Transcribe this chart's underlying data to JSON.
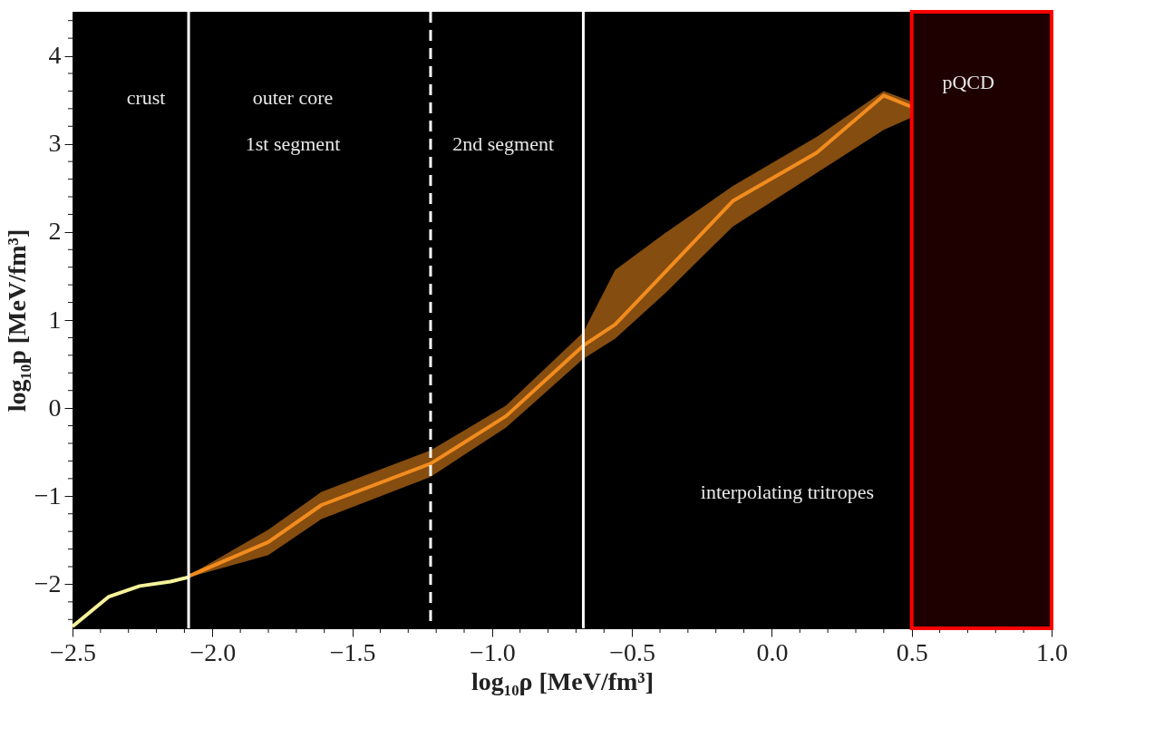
{
  "chart_data": {
    "type": "line",
    "xlabel": "log₁₀ρ [MeV/fm³]",
    "ylabel": "log₁₀p [MeV/fm³]",
    "xlim": [
      -2.5,
      1.0
    ],
    "ylim": [
      -2.5,
      4.5
    ],
    "xticks": [
      {
        "value": -2.5,
        "label": "−2.5"
      },
      {
        "value": -2.4,
        "label": null
      },
      {
        "value": -2.3,
        "label": null
      },
      {
        "value": -2.2,
        "label": null
      },
      {
        "value": -2.1,
        "label": null
      },
      {
        "value": -2.0,
        "label": "−2.0"
      },
      {
        "value": -1.9,
        "label": null
      },
      {
        "value": -1.8,
        "label": null
      },
      {
        "value": -1.7,
        "label": null
      },
      {
        "value": -1.6,
        "label": null
      },
      {
        "value": -1.5,
        "label": "−1.5"
      },
      {
        "value": -1.4,
        "label": null
      },
      {
        "value": -1.3,
        "label": null
      },
      {
        "value": -1.2,
        "label": null
      },
      {
        "value": -1.1,
        "label": null
      },
      {
        "value": -1.0,
        "label": "−1.0"
      },
      {
        "value": -0.9,
        "label": null
      },
      {
        "value": -0.8,
        "label": null
      },
      {
        "value": -0.7,
        "label": null
      },
      {
        "value": -0.6,
        "label": null
      },
      {
        "value": -0.5,
        "label": "−0.5"
      },
      {
        "value": -0.4,
        "label": null
      },
      {
        "value": -0.3,
        "label": null
      },
      {
        "value": -0.2,
        "label": null
      },
      {
        "value": -0.1,
        "label": null
      },
      {
        "value": 0.0,
        "label": "0.0"
      },
      {
        "value": 0.1,
        "label": null
      },
      {
        "value": 0.2,
        "label": null
      },
      {
        "value": 0.3,
        "label": null
      },
      {
        "value": 0.4,
        "label": null
      },
      {
        "value": 0.5,
        "label": "0.5"
      },
      {
        "value": 0.6,
        "label": null
      },
      {
        "value": 0.7,
        "label": null
      },
      {
        "value": 0.8,
        "label": null
      },
      {
        "value": 0.9,
        "label": null
      },
      {
        "value": 1.0,
        "label": "1.0"
      }
    ],
    "yticks": [
      {
        "value": -2.4,
        "label": null
      },
      {
        "value": -2.2,
        "label": null
      },
      {
        "value": -2,
        "label": "−2"
      },
      {
        "value": -1.8,
        "label": null
      },
      {
        "value": -1.6,
        "label": null
      },
      {
        "value": -1.4,
        "label": null
      },
      {
        "value": -1.2,
        "label": null
      },
      {
        "value": -1,
        "label": "−1"
      },
      {
        "value": -0.8,
        "label": null
      },
      {
        "value": -0.6,
        "label": null
      },
      {
        "value": -0.4,
        "label": null
      },
      {
        "value": -0.2,
        "label": null
      },
      0,
      {
        "value": 0.2,
        "label": null
      },
      {
        "value": 0.4,
        "label": null
      },
      {
        "value": 0.6,
        "label": null
      },
      {
        "value": 0.8,
        "label": null
      },
      1,
      {
        "value": 1.2,
        "label": null
      },
      {
        "value": 1.4,
        "label": null
      },
      {
        "value": 1.6,
        "label": null
      },
      {
        "value": 1.8,
        "label": null
      },
      2,
      {
        "value": 2.2,
        "label": null
      },
      {
        "value": 2.4,
        "label": null
      },
      {
        "value": 2.6,
        "label": null
      },
      {
        "value": 2.8,
        "label": null
      },
      3,
      {
        "value": 3.2,
        "label": null
      },
      {
        "value": 3.4,
        "label": null
      },
      {
        "value": 3.6,
        "label": null
      },
      {
        "value": 3.8,
        "label": null
      },
      4,
      {
        "value": 4.2,
        "label": null
      },
      {
        "value": 4.4,
        "label": null
      }
    ],
    "grid": false,
    "series": [
      {
        "type": "line",
        "color": "#f6f29a",
        "x": [
          -2.5,
          -2.37,
          -2.26,
          -2.15,
          -2.085
        ],
        "values": [
          -2.48,
          -2.14,
          -2.02,
          -1.97,
          -1.92
        ]
      },
      {
        "type": "line",
        "color": "#f28c1e",
        "x": [
          -2.085,
          -1.8,
          -1.61,
          -1.22,
          -0.95,
          -0.674,
          -0.56,
          -0.38,
          -0.14,
          0.16,
          0.4,
          0.5
        ],
        "values": [
          -1.91,
          -1.52,
          -1.1,
          -0.63,
          -0.09,
          0.71,
          0.95,
          1.55,
          2.35,
          2.9,
          3.55,
          3.42
        ],
        "lower": [
          -1.92,
          -1.67,
          -1.26,
          -0.78,
          -0.22,
          0.56,
          0.79,
          1.31,
          2.06,
          2.67,
          3.16,
          3.3
        ],
        "upper": [
          -1.9,
          -1.38,
          -0.95,
          -0.48,
          0.03,
          0.86,
          1.57,
          1.99,
          2.52,
          3.08,
          3.6,
          3.48
        ]
      }
    ],
    "ref_lines": [
      {
        "axis": "x",
        "value": -2.085,
        "color": "#ffffff",
        "line_style": "solid"
      },
      {
        "axis": "x",
        "value": -1.22,
        "color": "#ffffff",
        "line_style": "dashed"
      },
      {
        "axis": "x",
        "value": -0.674,
        "color": "#ffffff",
        "line_style": "solid"
      }
    ],
    "bands": [
      {
        "axis": "x",
        "from": 0.5,
        "to": 1.0,
        "color": "#ff0000"
      }
    ],
    "annotations": [
      "crust",
      "outer core",
      "1st segment",
      "2nd segment",
      "pQCD",
      "interpolating tritropes"
    ]
  }
}
